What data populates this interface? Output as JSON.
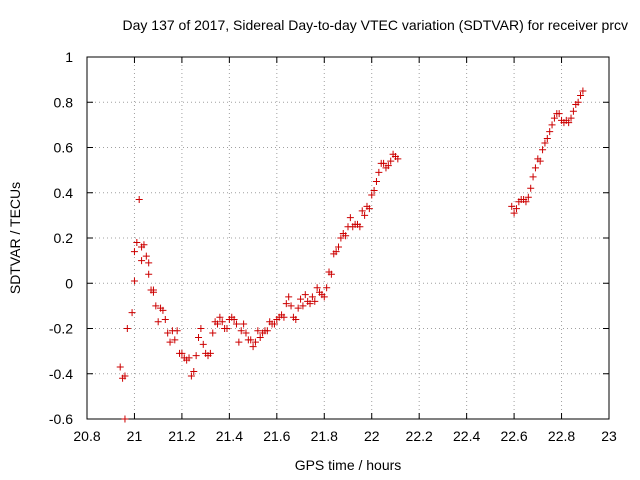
{
  "chart_data": {
    "type": "scatter",
    "title": "Day 137 of 2017, Sidereal Day-to-day VTEC variation (SDTVAR) for receiver prcv",
    "xlabel": "GPS time / hours",
    "ylabel": "SDTVAR / TECUs",
    "xlim": [
      20.8,
      23.0
    ],
    "ylim": [
      -0.6,
      1.0
    ],
    "xticks": [
      20.8,
      21.0,
      21.2,
      21.4,
      21.6,
      21.8,
      22.0,
      22.2,
      22.4,
      22.6,
      22.8,
      23.0
    ],
    "xtick_labels": [
      "20.8",
      "21",
      "21.2",
      "21.4",
      "21.6",
      "21.8",
      "22",
      "22.2",
      "22.4",
      "22.6",
      "22.8",
      "23"
    ],
    "yticks": [
      -0.6,
      -0.4,
      -0.2,
      0,
      0.2,
      0.4,
      0.6,
      0.8,
      1.0
    ],
    "ytick_labels": [
      "-0.6",
      "-0.4",
      "-0.2",
      "0",
      "0.2",
      "0.4",
      "0.6",
      "0.8",
      "1"
    ],
    "grid": true,
    "marker": "+",
    "color": "#cc0000",
    "series": [
      {
        "name": "SDTVAR",
        "points": [
          [
            20.94,
            -0.37
          ],
          [
            20.95,
            -0.42
          ],
          [
            20.96,
            -0.6
          ],
          [
            20.96,
            -0.41
          ],
          [
            20.97,
            -0.2
          ],
          [
            20.99,
            -0.13
          ],
          [
            21.0,
            0.01
          ],
          [
            21.0,
            0.14
          ],
          [
            21.01,
            0.18
          ],
          [
            21.02,
            0.37
          ],
          [
            21.03,
            0.1
          ],
          [
            21.03,
            0.16
          ],
          [
            21.04,
            0.17
          ],
          [
            21.05,
            0.12
          ],
          [
            21.06,
            0.09
          ],
          [
            21.06,
            0.04
          ],
          [
            21.07,
            -0.03
          ],
          [
            21.08,
            -0.04
          ],
          [
            21.08,
            -0.03
          ],
          [
            21.09,
            -0.1
          ],
          [
            21.1,
            -0.17
          ],
          [
            21.11,
            -0.11
          ],
          [
            21.12,
            -0.12
          ],
          [
            21.13,
            -0.16
          ],
          [
            21.14,
            -0.22
          ],
          [
            21.15,
            -0.26
          ],
          [
            21.16,
            -0.21
          ],
          [
            21.17,
            -0.25
          ],
          [
            21.18,
            -0.21
          ],
          [
            21.19,
            -0.31
          ],
          [
            21.2,
            -0.31
          ],
          [
            21.21,
            -0.33
          ],
          [
            21.22,
            -0.34
          ],
          [
            21.23,
            -0.33
          ],
          [
            21.24,
            -0.41
          ],
          [
            21.25,
            -0.39
          ],
          [
            21.26,
            -0.32
          ],
          [
            21.27,
            -0.24
          ],
          [
            21.28,
            -0.2
          ],
          [
            21.29,
            -0.27
          ],
          [
            21.3,
            -0.31
          ],
          [
            21.31,
            -0.32
          ],
          [
            21.32,
            -0.31
          ],
          [
            21.33,
            -0.22
          ],
          [
            21.34,
            -0.17
          ],
          [
            21.35,
            -0.18
          ],
          [
            21.36,
            -0.15
          ],
          [
            21.37,
            -0.17
          ],
          [
            21.38,
            -0.2
          ],
          [
            21.39,
            -0.2
          ],
          [
            21.4,
            -0.16
          ],
          [
            21.41,
            -0.15
          ],
          [
            21.42,
            -0.16
          ],
          [
            21.43,
            -0.18
          ],
          [
            21.44,
            -0.26
          ],
          [
            21.45,
            -0.21
          ],
          [
            21.46,
            -0.18
          ],
          [
            21.47,
            -0.22
          ],
          [
            21.48,
            -0.25
          ],
          [
            21.49,
            -0.25
          ],
          [
            21.5,
            -0.28
          ],
          [
            21.51,
            -0.26
          ],
          [
            21.52,
            -0.21
          ],
          [
            21.53,
            -0.24
          ],
          [
            21.54,
            -0.22
          ],
          [
            21.55,
            -0.21
          ],
          [
            21.56,
            -0.21
          ],
          [
            21.57,
            -0.17
          ],
          [
            21.58,
            -0.18
          ],
          [
            21.59,
            -0.18
          ],
          [
            21.6,
            -0.16
          ],
          [
            21.61,
            -0.15
          ],
          [
            21.62,
            -0.14
          ],
          [
            21.63,
            -0.15
          ],
          [
            21.64,
            -0.09
          ],
          [
            21.65,
            -0.06
          ],
          [
            21.66,
            -0.1
          ],
          [
            21.67,
            -0.15
          ],
          [
            21.68,
            -0.16
          ],
          [
            21.69,
            -0.11
          ],
          [
            21.7,
            -0.07
          ],
          [
            21.71,
            -0.1
          ],
          [
            21.72,
            -0.05
          ],
          [
            21.73,
            -0.08
          ],
          [
            21.74,
            -0.09
          ],
          [
            21.75,
            -0.06
          ],
          [
            21.76,
            -0.08
          ],
          [
            21.77,
            -0.02
          ],
          [
            21.78,
            -0.04
          ],
          [
            21.79,
            -0.05
          ],
          [
            21.8,
            -0.06
          ],
          [
            21.81,
            -0.02
          ],
          [
            21.82,
            0.05
          ],
          [
            21.83,
            0.04
          ],
          [
            21.84,
            0.13
          ],
          [
            21.85,
            0.14
          ],
          [
            21.86,
            0.16
          ],
          [
            21.87,
            0.2
          ],
          [
            21.88,
            0.22
          ],
          [
            21.89,
            0.21
          ],
          [
            21.9,
            0.25
          ],
          [
            21.91,
            0.29
          ],
          [
            21.92,
            0.25
          ],
          [
            21.93,
            0.26
          ],
          [
            21.94,
            0.26
          ],
          [
            21.95,
            0.25
          ],
          [
            21.96,
            0.32
          ],
          [
            21.97,
            0.3
          ],
          [
            21.98,
            0.34
          ],
          [
            21.99,
            0.33
          ],
          [
            22.0,
            0.39
          ],
          [
            22.01,
            0.41
          ],
          [
            22.02,
            0.45
          ],
          [
            22.03,
            0.49
          ],
          [
            22.04,
            0.53
          ],
          [
            22.05,
            0.53
          ],
          [
            22.06,
            0.51
          ],
          [
            22.07,
            0.52
          ],
          [
            22.08,
            0.54
          ],
          [
            22.09,
            0.57
          ],
          [
            22.1,
            0.56
          ],
          [
            22.11,
            0.55
          ],
          [
            22.59,
            0.34
          ],
          [
            22.6,
            0.31
          ],
          [
            22.61,
            0.33
          ],
          [
            22.62,
            0.36
          ],
          [
            22.63,
            0.37
          ],
          [
            22.64,
            0.37
          ],
          [
            22.65,
            0.36
          ],
          [
            22.66,
            0.38
          ],
          [
            22.67,
            0.42
          ],
          [
            22.68,
            0.47
          ],
          [
            22.69,
            0.51
          ],
          [
            22.7,
            0.55
          ],
          [
            22.71,
            0.54
          ],
          [
            22.72,
            0.59
          ],
          [
            22.73,
            0.62
          ],
          [
            22.74,
            0.64
          ],
          [
            22.75,
            0.67
          ],
          [
            22.76,
            0.7
          ],
          [
            22.77,
            0.73
          ],
          [
            22.78,
            0.75
          ],
          [
            22.79,
            0.75
          ],
          [
            22.8,
            0.72
          ],
          [
            22.81,
            0.71
          ],
          [
            22.82,
            0.72
          ],
          [
            22.83,
            0.71
          ],
          [
            22.84,
            0.73
          ],
          [
            22.85,
            0.76
          ],
          [
            22.86,
            0.79
          ],
          [
            22.87,
            0.8
          ],
          [
            22.88,
            0.83
          ],
          [
            22.89,
            0.85
          ]
        ]
      }
    ]
  }
}
